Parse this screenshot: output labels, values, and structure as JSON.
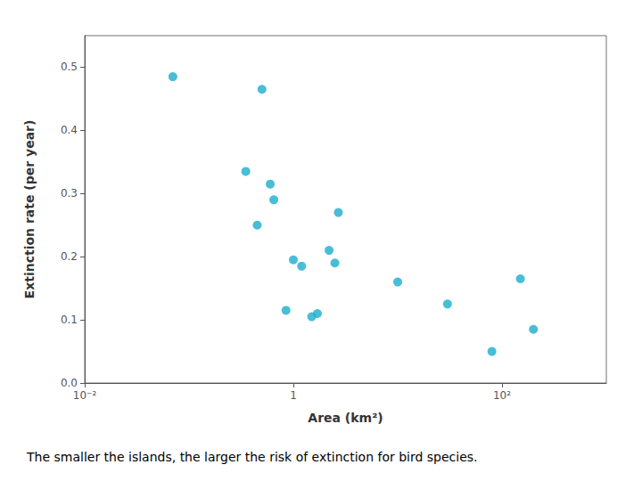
{
  "chart_data": {
    "type": "scatter",
    "annotation": "The smaller the islands, the larger the risk of extinction for bird species.",
    "xlabel": "Area (km²)",
    "ylabel": "Extinction rate (per year)",
    "x": [
      0.07,
      0.35,
      0.45,
      0.5,
      0.6,
      0.65,
      0.85,
      1.0,
      1.2,
      1.5,
      1.7,
      2.2,
      2.5,
      2.7,
      10,
      30,
      80,
      150,
      200
    ],
    "values": [
      0.485,
      0.335,
      0.25,
      0.465,
      0.315,
      0.29,
      0.115,
      0.195,
      0.185,
      0.105,
      0.11,
      0.21,
      0.19,
      0.27,
      0.16,
      0.125,
      0.05,
      0.165,
      0.085
    ],
    "color": "#1AACCC",
    "log": "x",
    "xlim": [
      0.01,
      1000
    ],
    "xticks": [
      {
        "value": 0.01,
        "label": "10⁻²"
      },
      {
        "value": 1,
        "label": "1"
      },
      {
        "value": 100,
        "label": "10²"
      }
    ],
    "ylim": [
      0.0,
      0.55
    ],
    "yticks": [
      {
        "value": 0.0,
        "label": "0.0"
      },
      0.1,
      0.2,
      0.3,
      0.4,
      0.5
    ],
    "grid": false
  }
}
